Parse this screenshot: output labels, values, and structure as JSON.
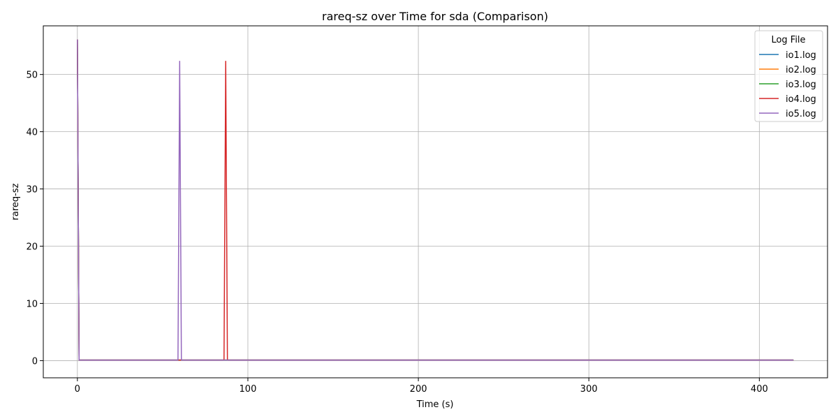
{
  "chart_data": {
    "type": "line",
    "title": "rareq-sz over Time for sda (Comparison)",
    "xlabel": "Time (s)",
    "ylabel": "rareq-sz",
    "xlim": [
      -20,
      440
    ],
    "ylim": [
      -3,
      58.5
    ],
    "xticks": [
      0,
      100,
      200,
      300,
      400
    ],
    "yticks": [
      0,
      10,
      20,
      30,
      40,
      50
    ],
    "grid": true,
    "legend": {
      "title": "Log File",
      "placement": "top-right"
    },
    "series": [
      {
        "name": "io1.log",
        "color": "#1f77b4",
        "x": [
          0,
          1,
          420
        ],
        "y": [
          56.1,
          0.1,
          0.1
        ]
      },
      {
        "name": "io2.log",
        "color": "#ff7f0e",
        "x": [
          0,
          1,
          420
        ],
        "y": [
          56.1,
          0.1,
          0.1
        ]
      },
      {
        "name": "io3.log",
        "color": "#2ca02c",
        "x": [
          0,
          1,
          420
        ],
        "y": [
          56.1,
          0.1,
          0.1
        ]
      },
      {
        "name": "io4.log",
        "color": "#d62728",
        "x": [
          0,
          1,
          86,
          87,
          88,
          420
        ],
        "y": [
          56.1,
          0.1,
          0.1,
          52.3,
          0.1,
          0.1
        ]
      },
      {
        "name": "io5.log",
        "color": "#9467bd",
        "x": [
          0,
          1,
          59,
          60,
          61,
          420
        ],
        "y": [
          56.1,
          0.1,
          0.1,
          52.3,
          0.1,
          0.1
        ]
      }
    ]
  }
}
